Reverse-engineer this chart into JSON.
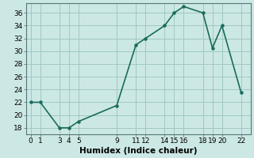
{
  "x": [
    0,
    1,
    3,
    4,
    5,
    9,
    11,
    12,
    14,
    15,
    16,
    18,
    19,
    20,
    22
  ],
  "y": [
    22,
    22,
    18,
    18,
    19,
    21.5,
    31,
    32,
    34,
    36,
    37,
    36,
    30.5,
    34,
    23.5
  ],
  "line_color": "#1a6b5e",
  "marker": "o",
  "marker_size": 2.2,
  "bg_color": "#cce8e4",
  "grid_color": "#a0c8c4",
  "xlabel": "Humidex (Indice chaleur)",
  "xlabel_fontsize": 7.5,
  "xlim": [
    -0.5,
    23
  ],
  "ylim": [
    17,
    37.5
  ],
  "xticks": [
    0,
    1,
    3,
    4,
    5,
    9,
    11,
    12,
    14,
    15,
    16,
    18,
    19,
    20,
    22
  ],
  "yticks": [
    18,
    20,
    22,
    24,
    26,
    28,
    30,
    32,
    34,
    36
  ],
  "tick_fontsize": 6.5,
  "linewidth": 1.2
}
